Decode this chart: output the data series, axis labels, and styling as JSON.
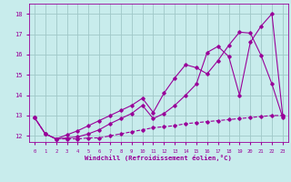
{
  "xlabel": "Windchill (Refroidissement éolien,°C)",
  "background_color": "#c8ecec",
  "grid_color": "#a0c8c8",
  "line_color": "#990099",
  "xlim": [
    -0.5,
    23.5
  ],
  "ylim": [
    11.7,
    18.5
  ],
  "yticks": [
    12,
    13,
    14,
    15,
    16,
    17,
    18
  ],
  "xticks": [
    0,
    1,
    2,
    3,
    4,
    5,
    6,
    7,
    8,
    9,
    10,
    11,
    12,
    13,
    14,
    15,
    16,
    17,
    18,
    19,
    20,
    21,
    22,
    23
  ],
  "line1_x": [
    0,
    1,
    2,
    3,
    4,
    5,
    6,
    7,
    8,
    9,
    10,
    11,
    12,
    13,
    14,
    15,
    16,
    17,
    18,
    19,
    20,
    21,
    22,
    23
  ],
  "line1_y": [
    12.9,
    12.1,
    11.85,
    11.85,
    11.85,
    11.9,
    11.9,
    12.0,
    12.1,
    12.2,
    12.3,
    12.4,
    12.45,
    12.5,
    12.6,
    12.65,
    12.7,
    12.75,
    12.8,
    12.85,
    12.9,
    12.95,
    13.0,
    13.0
  ],
  "line2_x": [
    0,
    1,
    2,
    3,
    4,
    5,
    6,
    7,
    8,
    9,
    10,
    11,
    12,
    13,
    14,
    15,
    16,
    17,
    18,
    19,
    20,
    21,
    22,
    23
  ],
  "line2_y": [
    12.9,
    12.1,
    11.85,
    11.9,
    11.95,
    12.1,
    12.3,
    12.6,
    12.85,
    13.1,
    13.5,
    12.85,
    13.1,
    13.5,
    14.0,
    14.55,
    16.1,
    16.4,
    15.9,
    14.0,
    16.6,
    17.4,
    18.0,
    13.0
  ],
  "line3_x": [
    0,
    1,
    2,
    3,
    4,
    5,
    6,
    7,
    8,
    9,
    10,
    11,
    12,
    13,
    14,
    15,
    16,
    17,
    18,
    19,
    20,
    21,
    22,
    23
  ],
  "line3_y": [
    12.9,
    12.1,
    11.85,
    12.05,
    12.25,
    12.5,
    12.75,
    13.0,
    13.25,
    13.5,
    13.85,
    13.15,
    14.1,
    14.85,
    15.5,
    15.35,
    15.05,
    15.7,
    16.45,
    17.1,
    17.05,
    15.95,
    14.55,
    12.9
  ]
}
